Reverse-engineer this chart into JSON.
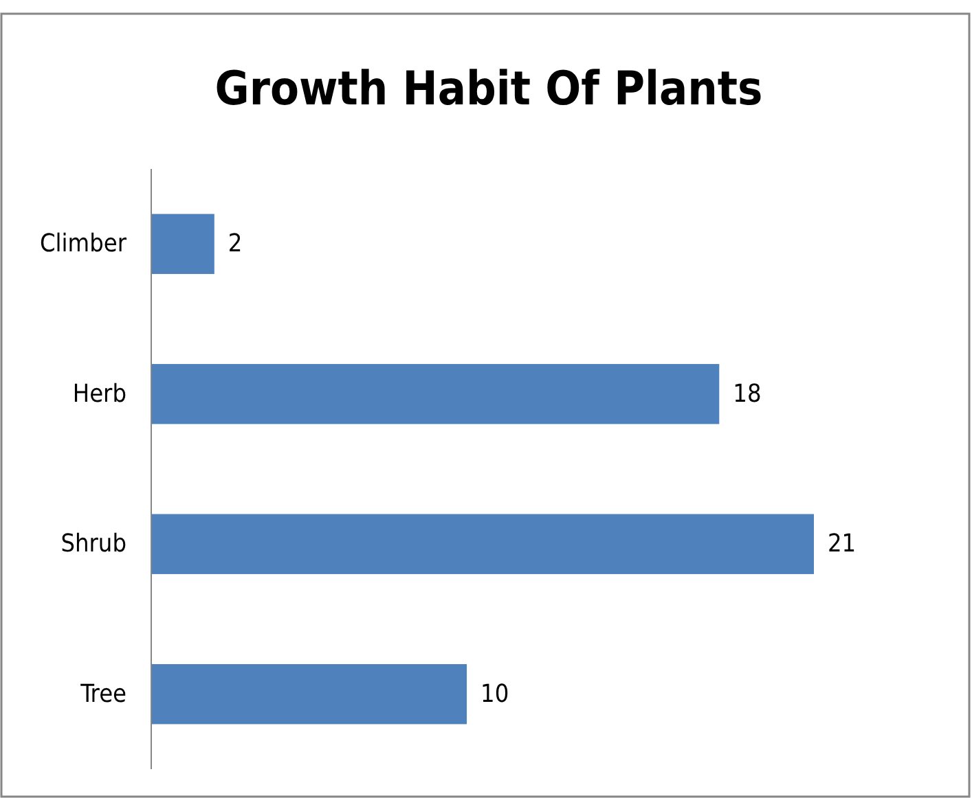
{
  "chart_data": {
    "type": "bar",
    "orientation": "horizontal",
    "title": "Growth Habit Of Plants",
    "categories": [
      "Climber",
      "Herb",
      "Shrub",
      "Tree"
    ],
    "values": [
      2,
      18,
      21,
      10
    ],
    "color": "#4f81bd",
    "data_labels": true,
    "tick_labels": "y"
  }
}
